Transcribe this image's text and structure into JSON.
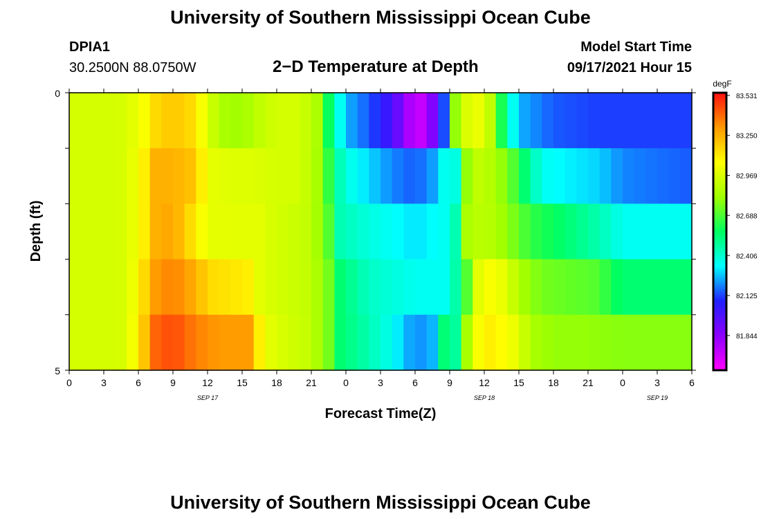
{
  "header": {
    "title": "University of Southern Mississippi Ocean Cube",
    "station_id": "DPIA1",
    "coordinates": "30.2500N  88.0750W",
    "model_start_label": "Model Start Time",
    "model_start_value": "09/17/2021 Hour 15"
  },
  "footer": {
    "title": "University of Southern Mississippi Ocean Cube"
  },
  "chart_data": {
    "type": "heatmap",
    "title": "2−D Temperature at Depth",
    "xlabel": "Forecast Time(Z)",
    "ylabel": "Depth (ft)",
    "xlim": [
      0,
      54
    ],
    "ylim": [
      0,
      5
    ],
    "y_ticks": [
      0,
      5
    ],
    "x_tick_hours": [
      0,
      3,
      6,
      9,
      12,
      15,
      18,
      21,
      24,
      27,
      30,
      33,
      36,
      39,
      42,
      45,
      48,
      51,
      54
    ],
    "x_tick_labels": [
      "0",
      "3",
      "6",
      "9",
      "12",
      "15",
      "18",
      "21",
      "0",
      "3",
      "6",
      "9",
      "12",
      "15",
      "18",
      "21",
      "0",
      "3",
      "6"
    ],
    "date_labels": [
      {
        "hour": 12,
        "text": "SEP 17"
      },
      {
        "hour": 36,
        "text": "SEP 18"
      },
      {
        "hour": 51,
        "text": "SEP 19"
      }
    ],
    "colorbar": {
      "unit": "degF",
      "min": 81.6,
      "max": 83.55,
      "tick_values": [
        83.531,
        83.25,
        82.969,
        82.688,
        82.406,
        82.125,
        81.844
      ],
      "tick_labels": [
        "83.531",
        "83.250",
        "82.969",
        "82.688",
        "82.406",
        "82.125",
        "81.844"
      ],
      "colormap": [
        "#ff00ff",
        "#8c00ff",
        "#2020ff",
        "#00ffff",
        "#00ff60",
        "#a0ff00",
        "#ffff00",
        "#ff9900",
        "#ff1010"
      ]
    },
    "depth_levels": [
      0,
      1,
      2,
      3,
      4,
      5
    ],
    "profiles": [
      {
        "name": "0-1 ft",
        "keys": [
          [
            0,
            82.95
          ],
          [
            3,
            82.95
          ],
          [
            5,
            82.96
          ],
          [
            6.5,
            83.05
          ],
          [
            7.5,
            83.15
          ],
          [
            9,
            83.2
          ],
          [
            10.5,
            83.15
          ],
          [
            12,
            82.99
          ],
          [
            13,
            82.85
          ],
          [
            15,
            82.82
          ],
          [
            16.5,
            82.9
          ],
          [
            18,
            82.95
          ],
          [
            20,
            82.95
          ],
          [
            21.5,
            82.85
          ],
          [
            23,
            82.45
          ],
          [
            24,
            82.25
          ],
          [
            26,
            82.15
          ],
          [
            28,
            82.0
          ],
          [
            30,
            81.7
          ],
          [
            31,
            81.75
          ],
          [
            32.3,
            82.05
          ],
          [
            33,
            82.35
          ],
          [
            33.5,
            82.8
          ],
          [
            34,
            82.95
          ],
          [
            35.5,
            83.01
          ],
          [
            36.5,
            82.9
          ],
          [
            37.2,
            82.7
          ],
          [
            38,
            82.45
          ],
          [
            39,
            82.25
          ],
          [
            42,
            82.15
          ],
          [
            46,
            82.12
          ],
          [
            54,
            82.12
          ]
        ]
      },
      {
        "name": "1-2 ft",
        "keys": [
          [
            0,
            82.95
          ],
          [
            3,
            82.95
          ],
          [
            5,
            82.96
          ],
          [
            6.5,
            83.1
          ],
          [
            7.5,
            83.25
          ],
          [
            9,
            83.25
          ],
          [
            11,
            83.2
          ],
          [
            12,
            83.0
          ],
          [
            14,
            82.98
          ],
          [
            16.5,
            82.97
          ],
          [
            18,
            82.95
          ],
          [
            20,
            82.95
          ],
          [
            22,
            82.8
          ],
          [
            23,
            82.5
          ],
          [
            24,
            82.38
          ],
          [
            28,
            82.2
          ],
          [
            30,
            82.15
          ],
          [
            32,
            82.25
          ],
          [
            33.2,
            82.5
          ],
          [
            33.8,
            82.25
          ],
          [
            34.5,
            82.8
          ],
          [
            35.5,
            82.9
          ],
          [
            37,
            82.85
          ],
          [
            38.5,
            82.7
          ],
          [
            39.5,
            82.55
          ],
          [
            41,
            82.35
          ],
          [
            46,
            82.28
          ],
          [
            48,
            82.2
          ],
          [
            54,
            82.15
          ]
        ]
      },
      {
        "name": "2-3 ft",
        "keys": [
          [
            0,
            82.95
          ],
          [
            3,
            82.95
          ],
          [
            5,
            82.96
          ],
          [
            6.5,
            83.1
          ],
          [
            7.5,
            83.25
          ],
          [
            9,
            83.28
          ],
          [
            11,
            83.1
          ],
          [
            12,
            83.0
          ],
          [
            16.5,
            82.99
          ],
          [
            18,
            82.95
          ],
          [
            21,
            82.9
          ],
          [
            22.5,
            82.7
          ],
          [
            23.5,
            82.45
          ],
          [
            26,
            82.38
          ],
          [
            30,
            82.3
          ],
          [
            32.5,
            82.35
          ],
          [
            33.3,
            82.55
          ],
          [
            33.8,
            82.3
          ],
          [
            34.5,
            82.85
          ],
          [
            36,
            82.9
          ],
          [
            38,
            82.8
          ],
          [
            40,
            82.65
          ],
          [
            43,
            82.55
          ],
          [
            46,
            82.45
          ],
          [
            48,
            82.35
          ],
          [
            54,
            82.35
          ]
        ]
      },
      {
        "name": "3-4 ft",
        "keys": [
          [
            0,
            82.95
          ],
          [
            3,
            82.95
          ],
          [
            5,
            82.96
          ],
          [
            6.5,
            83.15
          ],
          [
            7.5,
            83.3
          ],
          [
            9,
            83.35
          ],
          [
            11,
            83.25
          ],
          [
            12,
            83.15
          ],
          [
            15.5,
            83.1
          ],
          [
            16.5,
            82.99
          ],
          [
            18,
            82.95
          ],
          [
            21,
            82.9
          ],
          [
            22.5,
            82.75
          ],
          [
            23.5,
            82.55
          ],
          [
            26,
            82.42
          ],
          [
            30,
            82.35
          ],
          [
            32.5,
            82.35
          ],
          [
            33.2,
            82.55
          ],
          [
            33.7,
            82.4
          ],
          [
            34.5,
            82.7
          ],
          [
            35.5,
            82.99
          ],
          [
            36.5,
            83.05
          ],
          [
            38,
            82.99
          ],
          [
            39,
            82.85
          ],
          [
            41,
            82.75
          ],
          [
            46,
            82.7
          ],
          [
            47,
            82.6
          ],
          [
            48,
            82.55
          ],
          [
            54,
            82.55
          ]
        ]
      },
      {
        "name": "4-5 ft",
        "keys": [
          [
            0,
            82.95
          ],
          [
            3,
            82.95
          ],
          [
            5,
            82.96
          ],
          [
            6.5,
            83.2
          ],
          [
            7.5,
            83.4
          ],
          [
            9,
            83.45
          ],
          [
            11,
            83.35
          ],
          [
            13,
            83.3
          ],
          [
            15.5,
            83.3
          ],
          [
            16.5,
            83.1
          ],
          [
            17.5,
            82.99
          ],
          [
            19,
            82.95
          ],
          [
            21,
            82.9
          ],
          [
            22.5,
            82.75
          ],
          [
            23.5,
            82.55
          ],
          [
            26,
            82.45
          ],
          [
            28,
            82.35
          ],
          [
            30,
            82.2
          ],
          [
            31.5,
            82.25
          ],
          [
            32.3,
            82.5
          ],
          [
            33,
            82.65
          ],
          [
            33.6,
            82.45
          ],
          [
            34.3,
            82.8
          ],
          [
            35.5,
            83.05
          ],
          [
            36.5,
            83.1
          ],
          [
            38,
            83.05
          ],
          [
            39,
            82.99
          ],
          [
            40,
            82.85
          ],
          [
            42,
            82.8
          ],
          [
            45,
            82.8
          ],
          [
            48,
            82.78
          ],
          [
            54,
            82.78
          ]
        ]
      }
    ]
  }
}
